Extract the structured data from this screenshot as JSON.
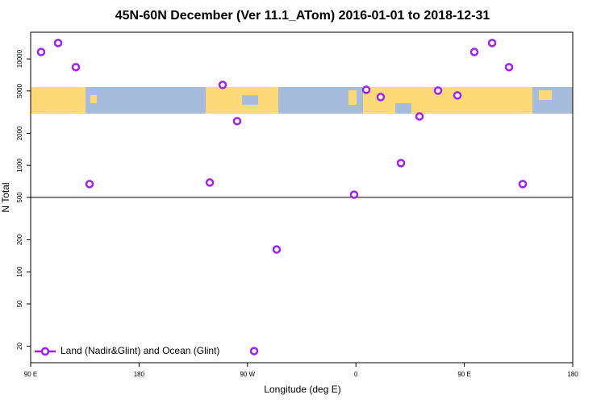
{
  "chart_data": {
    "type": "scatter",
    "title": "45N-60N December (Ver 11.1_ATom)   2016-01-01 to 2018-12-31",
    "x_label": "Longitude (deg E)",
    "y_label": "N Total",
    "xlim": [
      90,
      540
    ],
    "xticks": [
      {
        "value": 90,
        "label": "90 E"
      },
      180,
      {
        "value": 270,
        "label": "90 W"
      },
      {
        "value": 360,
        "label": "0"
      },
      {
        "value": 450,
        "label": "90 E"
      },
      {
        "value": 540,
        "label": "180"
      }
    ],
    "ylim": [
      14,
      17800
    ],
    "yticks": [
      20,
      50,
      100,
      200,
      500,
      1000,
      2000,
      5000,
      10000
    ],
    "y_scale": "log",
    "reference_line": 500,
    "legend": "bottom-left",
    "series": [
      {
        "name": "Land (Nadir&Glint) and Ocean (Glint)",
        "color": "#a020f0",
        "x": [
          98.7,
          112.8,
          127.5,
          138.9,
          238.7,
          249.4,
          261.4,
          275.5,
          294.2,
          358.5,
          368.6,
          380.6,
          397.4,
          412.8,
          428.2,
          444.3,
          458.3,
          473.1,
          487.1,
          498.5
        ],
        "values": [
          11600,
          14100,
          8360,
          667,
          690,
          5700,
          2600,
          18,
          162,
          531,
          5130,
          4380,
          1050,
          2880,
          5040,
          4540,
          11600,
          14100,
          8360,
          667
        ]
      }
    ]
  }
}
